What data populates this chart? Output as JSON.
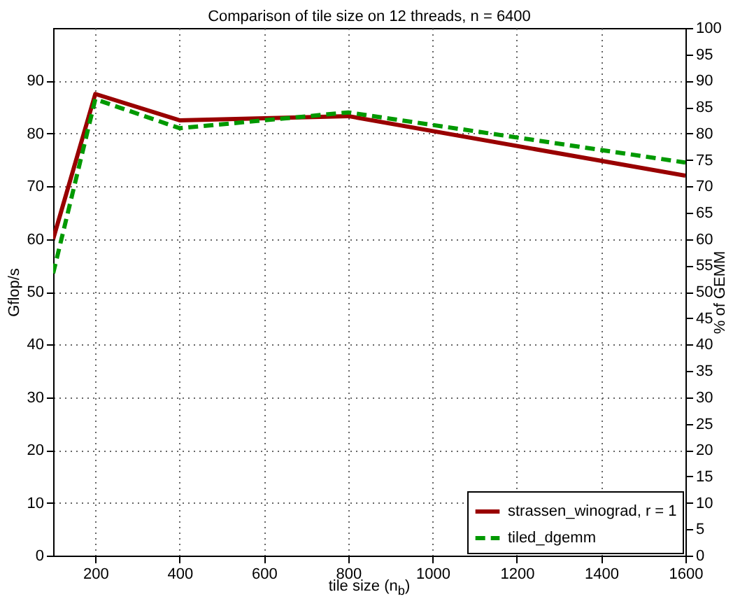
{
  "chart_data": {
    "type": "line",
    "title": "Comparison of tile size on 12 threads, n = 6400",
    "xlabel": "tile size (n$_{b}$)",
    "ylabel": "Gflop/s",
    "y2label": "% of GEMM",
    "x": [
      100,
      200,
      400,
      800,
      1600
    ],
    "series": [
      {
        "name": "strassen_winograd, r = 1",
        "color": "#990000",
        "line_style": "solid",
        "values": [
          60,
          87.5,
          82.5,
          83.3,
          72
        ]
      },
      {
        "name": "tiled_dgemm",
        "color": "#009900",
        "line_style": "dashed",
        "values": [
          53.5,
          86.5,
          81,
          84,
          74.5
        ]
      }
    ],
    "xlim": [
      100,
      1600
    ],
    "xticks": [
      200,
      400,
      600,
      800,
      1000,
      1200,
      1400,
      1600
    ],
    "ylim": [
      0,
      100
    ],
    "yticks": [
      0,
      10,
      20,
      30,
      40,
      50,
      60,
      70,
      80,
      90
    ],
    "y2lim": [
      0,
      100
    ],
    "y2ticks": [
      0,
      5,
      10,
      15,
      20,
      25,
      30,
      35,
      40,
      45,
      50,
      55,
      60,
      65,
      70,
      75,
      80,
      85,
      90,
      95,
      100
    ],
    "grid": true,
    "legend": "bottom right"
  }
}
